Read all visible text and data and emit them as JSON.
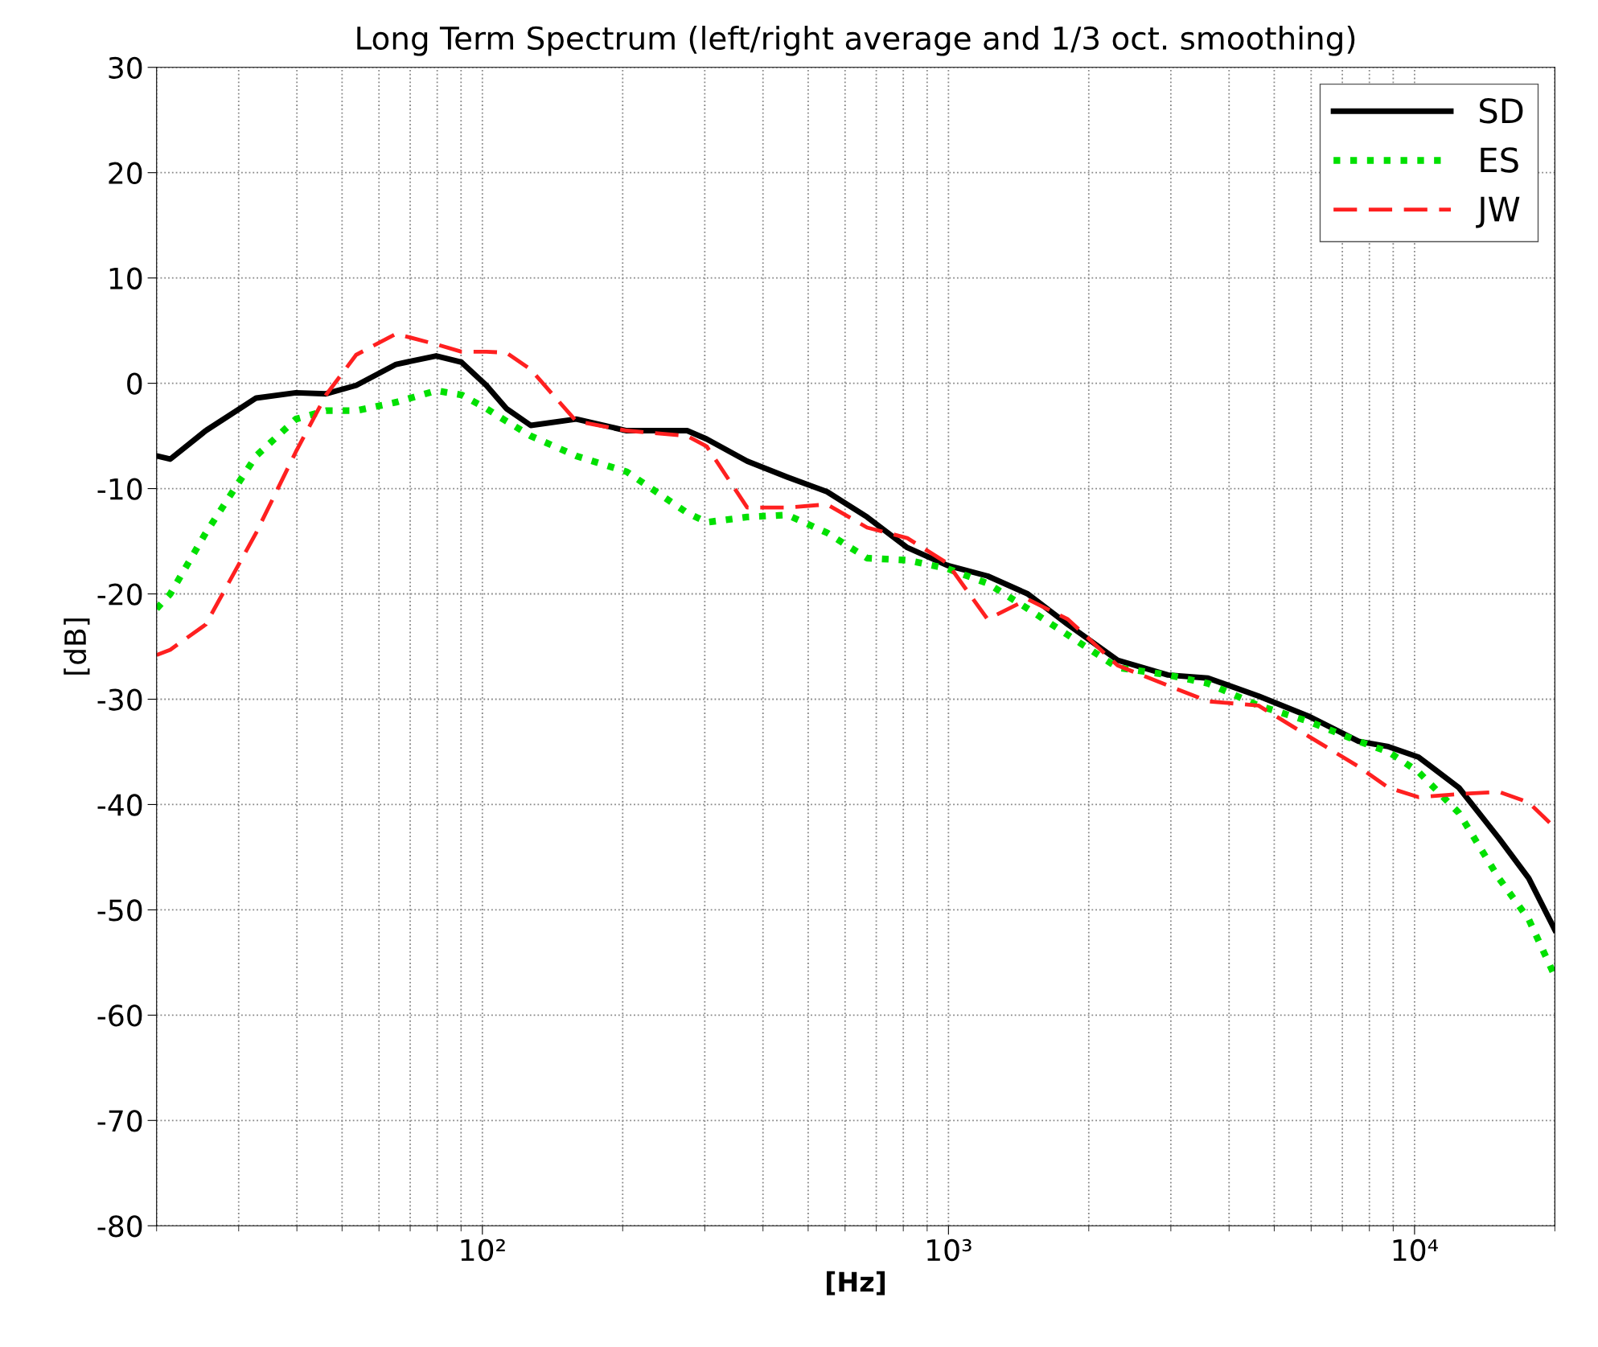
{
  "chart_data": {
    "type": "line",
    "title": "Long Term Spectrum (left/right average and 1/3 oct. smoothing)",
    "xlabel": "[Hz]",
    "ylabel": "[dB]",
    "log": "x",
    "xlim": [
      20,
      20000
    ],
    "ylim": [
      -80,
      30
    ],
    "xticks": [
      {
        "value": 100,
        "label": "10²"
      },
      {
        "value": 1000,
        "label": "10³"
      },
      {
        "value": 10000,
        "label": "10⁴"
      }
    ],
    "yticks": [
      -80,
      -70,
      -60,
      -50,
      -40,
      -30,
      -20,
      -10,
      0,
      10,
      20,
      30
    ],
    "grid": true,
    "legend": "top right",
    "x": [
      20,
      21.4,
      25.5,
      32.7,
      39.8,
      46.2,
      53.6,
      65.3,
      79.6,
      90.2,
      102,
      112.6,
      127,
      159,
      204,
      275,
      303,
      370,
      451,
      549,
      669,
      816,
      995,
      1213,
      1479,
      1803,
      2307,
      2958,
      3606,
      4624,
      5916,
      7586,
      8790,
      10200,
      12450,
      15170,
      17580,
      20000
    ],
    "series": [
      {
        "name": "SD",
        "color": "#000000",
        "line_style": "solid",
        "values": [
          -6.9,
          -7.2,
          -4.5,
          -1.4,
          -0.9,
          -1,
          -0.2,
          1.8,
          2.6,
          2,
          -0.2,
          -2.4,
          -4,
          -3.4,
          -4.5,
          -4.5,
          -5.3,
          -7.4,
          -8.9,
          -10.3,
          -12.7,
          -15.6,
          -17.3,
          -18.3,
          -20,
          -22.9,
          -26.3,
          -27.7,
          -28,
          -29.7,
          -31.6,
          -34,
          -34.5,
          -35.5,
          -38.4,
          -43.2,
          -47,
          -51.9
        ]
      },
      {
        "name": "ES",
        "color": "#00e000",
        "line_style": "dotted",
        "values": [
          -21.4,
          -20,
          -14.2,
          -6.9,
          -3.4,
          -2.6,
          -2.6,
          -1.8,
          -0.7,
          -1.1,
          -2.4,
          -3.6,
          -5,
          -6.9,
          -8.4,
          -12.3,
          -13.2,
          -12.7,
          -12.5,
          -14.2,
          -16.6,
          -16.8,
          -17.6,
          -19,
          -21.4,
          -23.9,
          -27,
          -27.7,
          -28.5,
          -30.6,
          -32.1,
          -34,
          -35,
          -36.9,
          -40.8,
          -47,
          -50.9,
          -56.3
        ]
      },
      {
        "name": "JW",
        "color": "#ff2020",
        "line_style": "dashed",
        "values": [
          -25.8,
          -25.3,
          -22.9,
          -14.2,
          -6.5,
          -1.1,
          2.7,
          4.7,
          3.7,
          3,
          3,
          2.9,
          1.3,
          -3.6,
          -4.5,
          -5,
          -6,
          -11.8,
          -11.8,
          -11.5,
          -13.7,
          -14.7,
          -17.1,
          -22.4,
          -20.5,
          -22.4,
          -26.8,
          -28.7,
          -30.2,
          -30.6,
          -33.5,
          -36.4,
          -38.4,
          -39.3,
          -39,
          -38.8,
          -39.8,
          -42.2
        ]
      }
    ]
  }
}
